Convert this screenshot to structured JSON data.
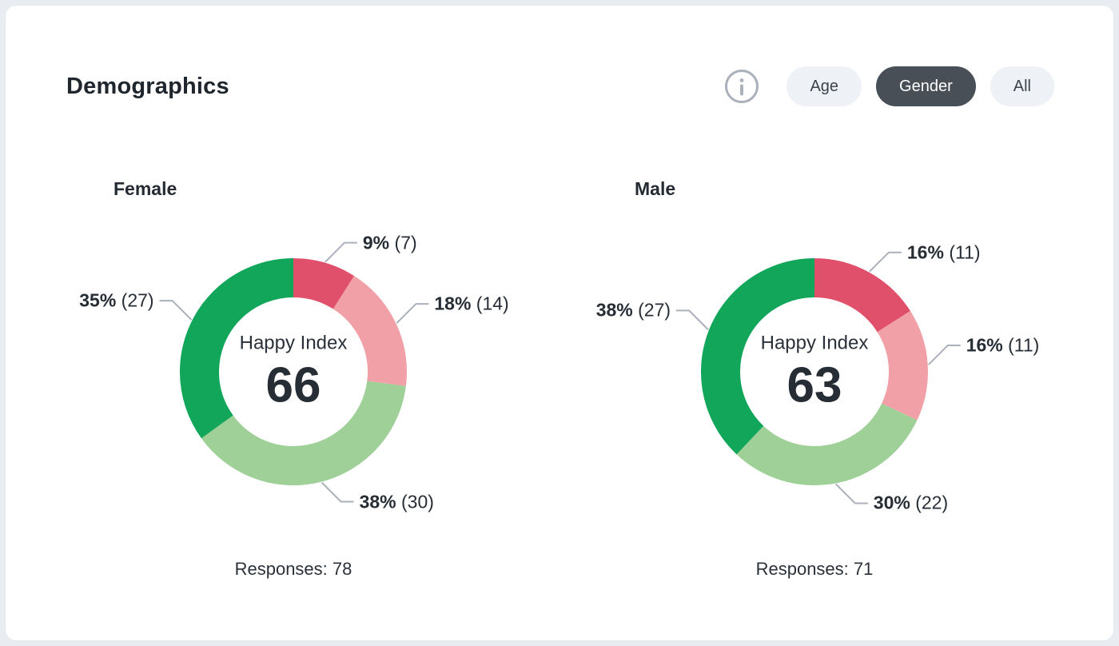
{
  "header": {
    "title": "Demographics",
    "info_icon": "info",
    "filters": [
      {
        "label": "Age",
        "active": false
      },
      {
        "label": "Gender",
        "active": true
      },
      {
        "label": "All",
        "active": false
      }
    ]
  },
  "chart_data": [
    {
      "type": "pie",
      "variant": "donut",
      "title": "Female",
      "center_label": "Happy Index",
      "center_value": "66",
      "responses_label": "Responses:",
      "responses_value": "78",
      "direction": "clockwise",
      "start_angle_deg": 0,
      "segments": [
        {
          "pct": 9,
          "count": 7,
          "color": "#e0506a"
        },
        {
          "pct": 18,
          "count": 14,
          "color": "#f0a0a6"
        },
        {
          "pct": 38,
          "count": 30,
          "color": "#9ed098"
        },
        {
          "pct": 35,
          "count": 27,
          "color": "#11a65a"
        }
      ]
    },
    {
      "type": "pie",
      "variant": "donut",
      "title": "Male",
      "center_label": "Happy Index",
      "center_value": "63",
      "responses_label": "Responses:",
      "responses_value": "71",
      "direction": "clockwise",
      "start_angle_deg": 0,
      "segments": [
        {
          "pct": 16,
          "count": 11,
          "color": "#e0506a"
        },
        {
          "pct": 16,
          "count": 11,
          "color": "#f0a0a6"
        },
        {
          "pct": 30,
          "count": 22,
          "color": "#9ed098"
        },
        {
          "pct": 38,
          "count": 27,
          "color": "#11a65a"
        }
      ]
    }
  ],
  "colors": {
    "page_background": "#e9edf2",
    "card_background": "#ffffff",
    "active_filter_background": "#484f57",
    "inactive_filter_background": "#eef1f5",
    "leader_line": "#aab1ba",
    "text_primary": "#262d35"
  }
}
